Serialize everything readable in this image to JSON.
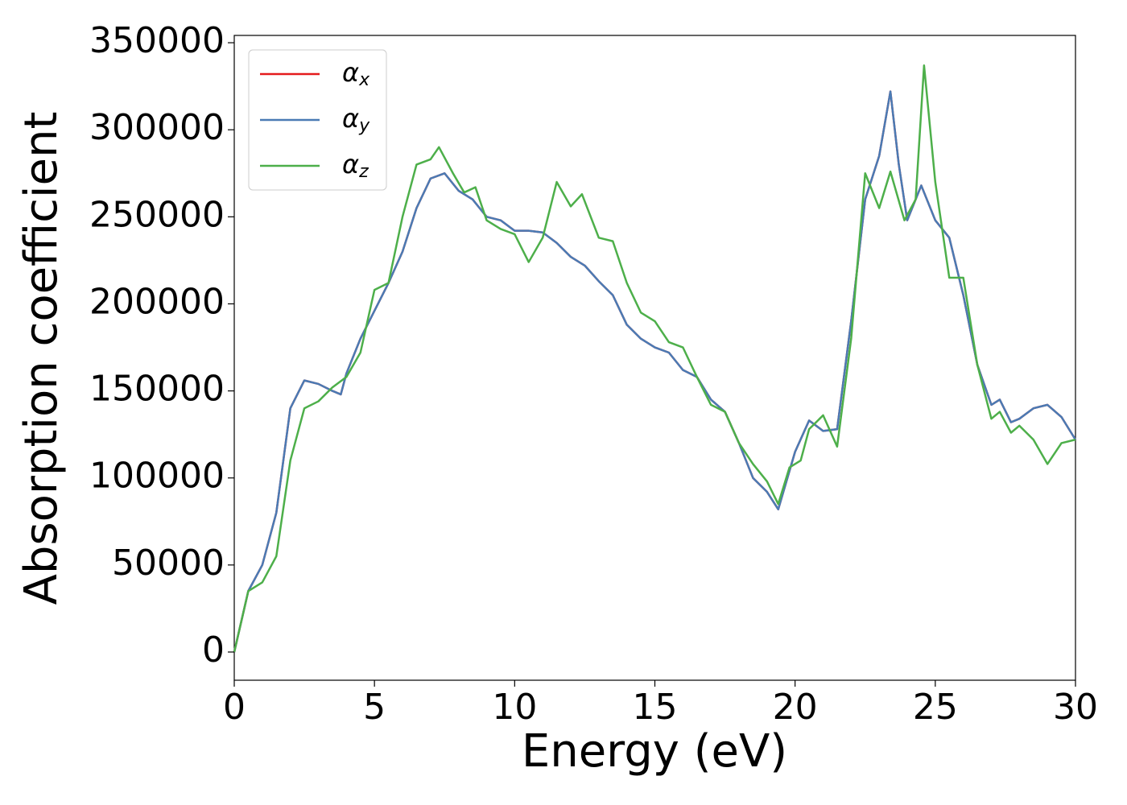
{
  "chart_data": {
    "type": "line",
    "xlabel": "Energy (eV)",
    "ylabel": "Absorption coefficient",
    "xlim": [
      0,
      30
    ],
    "ylim": [
      -16200,
      354200
    ],
    "xticks": [
      0,
      5,
      10,
      15,
      20,
      25,
      30
    ],
    "yticks": [
      0,
      50000,
      100000,
      150000,
      200000,
      250000,
      300000,
      350000
    ],
    "grid": false,
    "legend": "upper left",
    "series": [
      {
        "name": "αx",
        "color": "#e41a1c",
        "x": [
          0,
          0.5,
          1,
          1.5,
          2,
          2.5,
          3,
          3.5,
          3.8,
          4,
          4.5,
          5,
          5.5,
          6,
          6.5,
          7,
          7.5,
          8,
          8.5,
          9,
          9.5,
          10,
          10.5,
          11,
          11.5,
          12,
          12.5,
          13,
          13.5,
          14,
          14.5,
          15,
          15.5,
          16,
          16.5,
          17,
          17.5,
          18,
          18.5,
          19,
          19.4,
          20,
          20.5,
          21,
          21.5,
          22,
          22.5,
          23,
          23.4,
          23.7,
          24,
          24.5,
          25,
          25.5,
          26,
          26.5,
          27,
          27.3,
          27.7,
          28,
          28.5,
          29,
          29.5,
          30
        ],
        "values": [
          0,
          35000,
          50000,
          80000,
          140000,
          156000,
          154000,
          150000,
          148000,
          160000,
          180000,
          196000,
          212000,
          230000,
          255000,
          272000,
          275000,
          265000,
          260000,
          250000,
          248000,
          242000,
          242000,
          241000,
          235000,
          227000,
          222000,
          213000,
          205000,
          188000,
          180000,
          175000,
          172000,
          162000,
          158000,
          145000,
          138000,
          120000,
          100000,
          92000,
          82000,
          115000,
          133000,
          127000,
          128000,
          190000,
          260000,
          285000,
          322000,
          280000,
          248000,
          268000,
          248000,
          238000,
          205000,
          165000,
          142000,
          145000,
          132000,
          134000,
          140000,
          142000,
          135000,
          122000
        ]
      },
      {
        "name": "αy",
        "color": "#4a7bb4",
        "x": [
          0,
          0.5,
          1,
          1.5,
          2,
          2.5,
          3,
          3.5,
          3.8,
          4,
          4.5,
          5,
          5.5,
          6,
          6.5,
          7,
          7.5,
          8,
          8.5,
          9,
          9.5,
          10,
          10.5,
          11,
          11.5,
          12,
          12.5,
          13,
          13.5,
          14,
          14.5,
          15,
          15.5,
          16,
          16.5,
          17,
          17.5,
          18,
          18.5,
          19,
          19.4,
          20,
          20.5,
          21,
          21.5,
          22,
          22.5,
          23,
          23.4,
          23.7,
          24,
          24.5,
          25,
          25.5,
          26,
          26.5,
          27,
          27.3,
          27.7,
          28,
          28.5,
          29,
          29.5,
          30
        ],
        "values": [
          0,
          35000,
          50000,
          80000,
          140000,
          156000,
          154000,
          150000,
          148000,
          160000,
          180000,
          196000,
          212000,
          230000,
          255000,
          272000,
          275000,
          265000,
          260000,
          250000,
          248000,
          242000,
          242000,
          241000,
          235000,
          227000,
          222000,
          213000,
          205000,
          188000,
          180000,
          175000,
          172000,
          162000,
          158000,
          145000,
          138000,
          120000,
          100000,
          92000,
          82000,
          115000,
          133000,
          127000,
          128000,
          190000,
          260000,
          285000,
          322000,
          280000,
          248000,
          268000,
          248000,
          238000,
          205000,
          165000,
          142000,
          145000,
          132000,
          134000,
          140000,
          142000,
          135000,
          122000
        ]
      },
      {
        "name": "αz",
        "color": "#4daf4a",
        "x": [
          0,
          0.5,
          1,
          1.5,
          2,
          2.5,
          3,
          3.5,
          4,
          4.5,
          5,
          5.5,
          6,
          6.5,
          7,
          7.3,
          7.8,
          8.2,
          8.6,
          9,
          9.5,
          10,
          10.5,
          11,
          11.5,
          12,
          12.4,
          13,
          13.5,
          14,
          14.5,
          15,
          15.5,
          16,
          16.5,
          17,
          17.5,
          18,
          18.5,
          19,
          19.4,
          19.8,
          20.2,
          20.5,
          21,
          21.5,
          22,
          22.5,
          23,
          23.4,
          23.9,
          24.3,
          24.6,
          25,
          25.5,
          26,
          26.5,
          27,
          27.3,
          27.7,
          28,
          28.5,
          29,
          29.5,
          30
        ],
        "values": [
          0,
          35000,
          40000,
          55000,
          110000,
          140000,
          144000,
          152000,
          158000,
          172000,
          208000,
          212000,
          250000,
          280000,
          283000,
          290000,
          275000,
          264000,
          267000,
          248000,
          243000,
          240000,
          224000,
          238000,
          270000,
          256000,
          263000,
          238000,
          236000,
          212000,
          195000,
          190000,
          178000,
          175000,
          158000,
          142000,
          138000,
          120000,
          108000,
          98000,
          85000,
          106000,
          110000,
          128000,
          136000,
          118000,
          180000,
          275000,
          255000,
          276000,
          248000,
          260000,
          337000,
          270000,
          215000,
          215000,
          165000,
          134000,
          138000,
          126000,
          130000,
          122000,
          108000,
          120000,
          122000
        ]
      }
    ]
  }
}
